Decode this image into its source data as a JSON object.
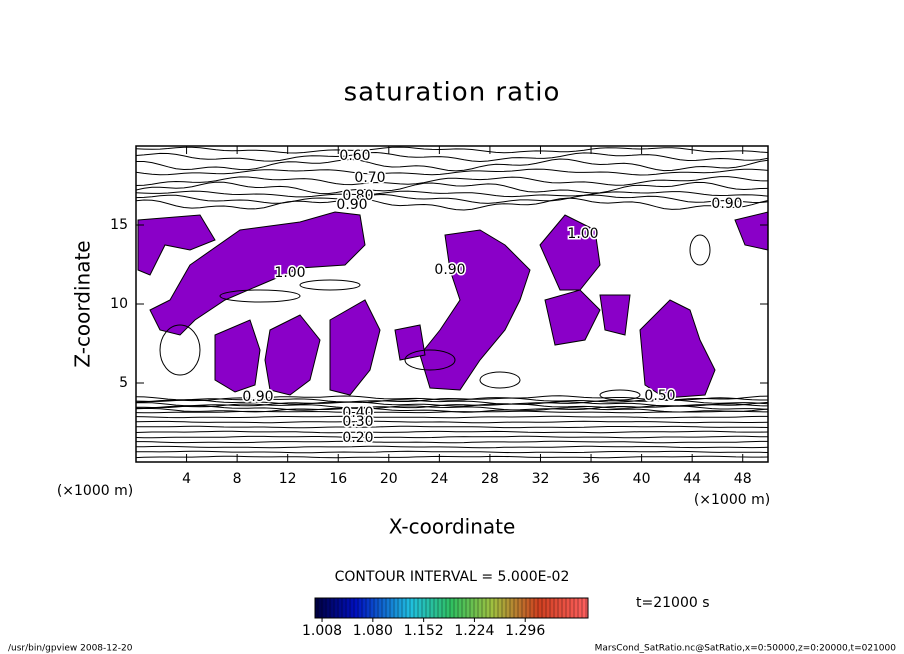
{
  "chart_data": {
    "type": "contour",
    "title": "saturation ratio",
    "x_label": "X-coordinate",
    "y_label": "Z-coordinate",
    "x_unit": "(×1000 m)",
    "y_unit": "(×1000 m)",
    "xlim": [
      0,
      50
    ],
    "ylim": [
      0,
      20
    ],
    "xticks": [
      4,
      8,
      12,
      16,
      20,
      24,
      28,
      32,
      36,
      40,
      44,
      48
    ],
    "yticks": [
      5,
      10,
      15
    ],
    "fill_color": "#8a00c8",
    "contour_labels": [
      {
        "value": 0.6,
        "label": "0.60"
      },
      {
        "value": 0.7,
        "label": "0.70"
      },
      {
        "value": 0.8,
        "label": "0.80"
      },
      {
        "value": 0.9,
        "label": "0.90"
      },
      {
        "value": 0.9,
        "label": "0.90"
      },
      {
        "value": 1.0,
        "label": "1.00"
      },
      {
        "value": 1.0,
        "label": "1.00"
      },
      {
        "value": 0.9,
        "label": "0.90"
      },
      {
        "value": 0.9,
        "label": "0.90"
      },
      {
        "value": 0.5,
        "label": "0.50"
      },
      {
        "value": 0.4,
        "label": "0.40"
      },
      {
        "value": 0.3,
        "label": "0.30"
      },
      {
        "value": 0.2,
        "label": "0.20"
      }
    ],
    "contour_interval": "CONTOUR INTERVAL = 5.000E-02",
    "colorbar": {
      "lim": [
        0.998,
        1.385
      ],
      "ticks": [
        {
          "value": 1.008,
          "label": "1.008"
        },
        {
          "value": 1.08,
          "label": "1.080"
        },
        {
          "value": 1.152,
          "label": "1.152"
        },
        {
          "value": 1.224,
          "label": "1.224"
        },
        {
          "value": 1.296,
          "label": "1.296"
        }
      ]
    },
    "time": "t=21000 s",
    "footer_left": "/usr/bin/gpview  2008-12-20",
    "footer_right": "MarsCond_SatRatio.nc@SatRatio,x=0:50000,z=0:20000,t=021000"
  }
}
